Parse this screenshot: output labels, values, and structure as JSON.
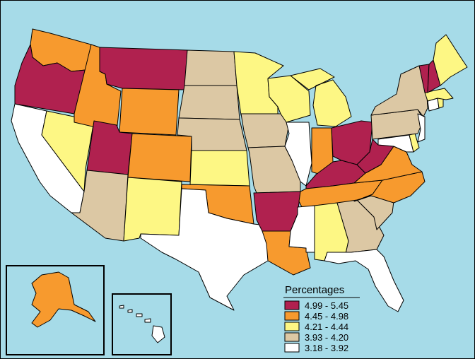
{
  "legend": {
    "title": "Percentages",
    "classes": [
      {
        "label": "4.99 - 5.45",
        "color": "#b0214f"
      },
      {
        "label": "4.45 - 4.98",
        "color": "#f79a2e"
      },
      {
        "label": "4.21 - 4.44",
        "color": "#fdf784"
      },
      {
        "label": "3.93 - 4.20",
        "color": "#dcc8a4"
      },
      {
        "label": "3.18 - 3.92",
        "color": "#ffffff"
      }
    ]
  },
  "states": {
    "WA": "4.45 - 4.98",
    "OR": "4.99 - 5.45",
    "CA": "3.18 - 3.92",
    "NV": "4.21 - 4.44",
    "ID": "4.45 - 4.98",
    "MT": "4.99 - 5.45",
    "WY": "4.45 - 4.98",
    "UT": "4.99 - 5.45",
    "AZ": "3.93 - 4.20",
    "CO": "4.45 - 4.98",
    "NM": "4.21 - 4.44",
    "ND": "3.93 - 4.20",
    "SD": "3.93 - 4.20",
    "NE": "3.93 - 4.20",
    "KS": "4.21 - 4.44",
    "OK": "4.45 - 4.98",
    "TX": "3.18 - 3.92",
    "MN": "4.21 - 4.44",
    "IA": "3.93 - 4.20",
    "MO": "3.93 - 4.20",
    "AR": "4.99 - 5.45",
    "LA": "4.45 - 4.98",
    "WI": "4.21 - 4.44",
    "IL": "3.18 - 3.92",
    "MI": "4.21 - 4.44",
    "IN": "4.45 - 4.98",
    "OH": "4.99 - 5.45",
    "KY": "4.99 - 5.45",
    "TN": "4.45 - 4.98",
    "MS": "3.18 - 3.92",
    "AL": "4.21 - 4.44",
    "GA": "3.93 - 4.20",
    "FL": "3.18 - 3.92",
    "SC": "3.93 - 4.20",
    "NC": "4.45 - 4.98",
    "VA": "4.45 - 4.98",
    "WV": "4.99 - 5.45",
    "PA": "3.93 - 4.20",
    "NY": "3.93 - 4.20",
    "ME": "4.21 - 4.44",
    "VT": "4.99 - 5.45",
    "NH": "4.99 - 5.45",
    "MA": "4.21 - 4.44",
    "CT": "3.18 - 3.92",
    "RI": "4.21 - 4.44",
    "NJ": "3.18 - 3.92",
    "DE": "4.21 - 4.44",
    "MD": "3.18 - 3.92",
    "AK": "4.45 - 4.98",
    "HI": "3.18 - 3.92"
  }
}
